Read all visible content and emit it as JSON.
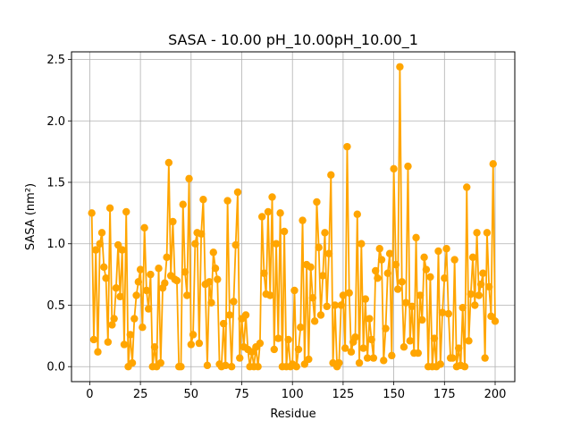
{
  "chart_data": {
    "type": "line",
    "title": "SASA - 10.00 pH_10.00pH_10.00_1",
    "xlabel": "Residue",
    "ylabel": "SASA (nm²)",
    "xlim": [
      -9,
      209.7
    ],
    "ylim": [
      -0.122,
      2.562
    ],
    "xticks": [
      0,
      25,
      50,
      75,
      100,
      125,
      150,
      175,
      200
    ],
    "yticks": [
      0.0,
      0.5,
      1.0,
      1.5,
      2.0,
      2.5
    ],
    "xtick_labels": [
      "0",
      "25",
      "50",
      "75",
      "100",
      "125",
      "150",
      "175",
      "200"
    ],
    "ytick_labels": [
      "0.0",
      "0.5",
      "1.0",
      "1.5",
      "2.0",
      "2.5"
    ],
    "grid": true,
    "color": "#ffa500",
    "series": [
      {
        "x": [
          1,
          2,
          3,
          4,
          5,
          6,
          7,
          8,
          9,
          10,
          11,
          12,
          13,
          14,
          15,
          16,
          17,
          18,
          19,
          20,
          21,
          22,
          23,
          24,
          25,
          26,
          27,
          28,
          29,
          30,
          31,
          32,
          33,
          34,
          35,
          36,
          37,
          38,
          39,
          40,
          41,
          42,
          43,
          44,
          45,
          46,
          47,
          48,
          49,
          50,
          51,
          52,
          53,
          54,
          55,
          56,
          57,
          58,
          59,
          60,
          61,
          62,
          63,
          64,
          65,
          66,
          67,
          68,
          69,
          70,
          71,
          72,
          73,
          74,
          75,
          76,
          77,
          78,
          79,
          80,
          81,
          82,
          83,
          84,
          85,
          86,
          87,
          88,
          89,
          90,
          91,
          92,
          93,
          94,
          95,
          96,
          97,
          98,
          99,
          100,
          101,
          102,
          103,
          104,
          105,
          106,
          107,
          108,
          109,
          110,
          111,
          112,
          113,
          114,
          115,
          116,
          117,
          118,
          119,
          120,
          121,
          122,
          123,
          124,
          125,
          126,
          127,
          128,
          129,
          130,
          131,
          132,
          133,
          134,
          135,
          136,
          137,
          138,
          139,
          140,
          141,
          142,
          143,
          144,
          145,
          146,
          147,
          148,
          149,
          150,
          151,
          152,
          153,
          154,
          155,
          156,
          157,
          158,
          159,
          160,
          161,
          162,
          163,
          164,
          165,
          166,
          167,
          168,
          169,
          170,
          171,
          172,
          173,
          174,
          175,
          176,
          177,
          178,
          179,
          180,
          181,
          182,
          183,
          184,
          185,
          186,
          187,
          188,
          189,
          190,
          191,
          192,
          193,
          194,
          195,
          196,
          197,
          198,
          199,
          200
        ],
        "y": [
          1.25,
          0.22,
          0.95,
          0.12,
          1.0,
          1.09,
          0.81,
          0.72,
          0.2,
          1.29,
          0.34,
          0.39,
          0.64,
          0.99,
          0.57,
          0.95,
          0.18,
          1.26,
          0.0,
          0.26,
          0.03,
          0.39,
          0.58,
          0.69,
          0.79,
          0.32,
          1.13,
          0.62,
          0.47,
          0.75,
          0.0,
          0.16,
          0.0,
          0.8,
          0.03,
          0.64,
          0.68,
          0.89,
          1.66,
          0.74,
          1.18,
          0.71,
          0.7,
          0.0,
          0.0,
          1.32,
          0.77,
          0.58,
          1.53,
          0.18,
          0.26,
          1.0,
          1.09,
          0.19,
          1.08,
          1.36,
          0.67,
          0.01,
          0.69,
          0.52,
          0.93,
          0.8,
          0.71,
          0.02,
          0.0,
          0.35,
          0.01,
          1.35,
          0.42,
          0.0,
          0.53,
          0.99,
          1.42,
          0.07,
          0.39,
          0.16,
          0.42,
          0.14,
          0.0,
          0.12,
          0.0,
          0.16,
          0.0,
          0.19,
          1.22,
          0.76,
          0.59,
          1.26,
          0.58,
          1.38,
          0.14,
          1.0,
          0.23,
          1.25,
          0.0,
          1.1,
          0.0,
          0.22,
          0.0,
          0.02,
          0.62,
          0.0,
          0.14,
          0.32,
          1.19,
          0.02,
          0.83,
          0.06,
          0.81,
          0.56,
          0.37,
          1.34,
          0.97,
          0.42,
          0.74,
          1.09,
          0.49,
          0.92,
          1.56,
          0.03,
          0.5,
          0.0,
          0.03,
          0.5,
          0.58,
          0.15,
          1.79,
          0.6,
          0.12,
          0.2,
          0.24,
          1.24,
          0.03,
          1.0,
          0.15,
          0.55,
          0.07,
          0.39,
          0.22,
          0.07,
          0.78,
          0.72,
          0.96,
          0.87,
          0.05,
          0.31,
          0.76,
          0.92,
          0.09,
          1.61,
          0.83,
          0.63,
          2.44,
          0.69,
          0.16,
          0.52,
          1.63,
          0.21,
          0.49,
          0.11,
          1.05,
          0.11,
          0.58,
          0.38,
          0.89,
          0.79,
          0.0,
          0.73,
          0.0,
          0.23,
          0.0,
          0.94,
          0.02,
          0.44,
          0.72,
          0.96,
          0.43,
          0.07,
          0.07,
          0.87,
          0.0,
          0.15,
          0.01,
          0.48,
          0.0,
          1.46,
          0.21,
          0.59,
          0.89,
          0.5,
          1.09,
          0.58,
          0.67,
          0.76,
          0.07,
          1.09,
          0.65,
          0.41,
          1.65,
          0.37
        ]
      }
    ]
  }
}
